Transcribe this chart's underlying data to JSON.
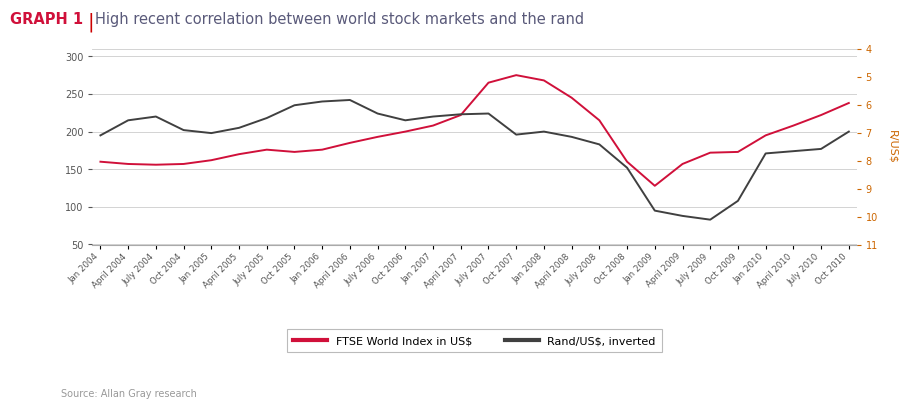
{
  "title_graph": "GRAPH 1",
  "title_text": "High recent correlation between world stock markets and the rand",
  "source": "Source: Allan Gray research",
  "left_ylim": [
    50,
    310
  ],
  "left_yticks": [
    50,
    100,
    150,
    200,
    250,
    300
  ],
  "right_yticks": [
    4,
    5,
    6,
    7,
    8,
    9,
    10,
    11
  ],
  "right_ylabel": "R/US$",
  "ftse_color": "#d0103a",
  "rand_color": "#404040",
  "x_labels": [
    "Jan 2004",
    "April 2004",
    "July 2004",
    "Oct 2004",
    "Jan 2005",
    "April 2005",
    "July 2005",
    "Oct 2005",
    "Jan 2006",
    "April 2006",
    "July 2006",
    "Oct 2006",
    "Jan 2007",
    "April 2007",
    "July 2007",
    "Oct 2007",
    "Jan 2008",
    "April 2008",
    "July 2008",
    "Oct 2008",
    "Jan 2009",
    "April 2009",
    "July 2009",
    "Oct 2009",
    "Jan 2010",
    "April 2010",
    "July 2010",
    "Oct 2010"
  ],
  "ftse_values": [
    160,
    157,
    156,
    157,
    162,
    170,
    176,
    173,
    176,
    185,
    193,
    200,
    208,
    222,
    265,
    275,
    268,
    245,
    215,
    160,
    128,
    157,
    172,
    173,
    195,
    208,
    222,
    238
  ],
  "rand_values_left": [
    195,
    215,
    220,
    202,
    198,
    205,
    218,
    235,
    240,
    242,
    224,
    215,
    220,
    223,
    224,
    196,
    200,
    193,
    183,
    152,
    95,
    88,
    83,
    108,
    171,
    174,
    177,
    200
  ],
  "legend_ftse": "FTSE World Index in US$",
  "legend_rand": "Rand/US$, inverted",
  "right_color": "#cc6600"
}
